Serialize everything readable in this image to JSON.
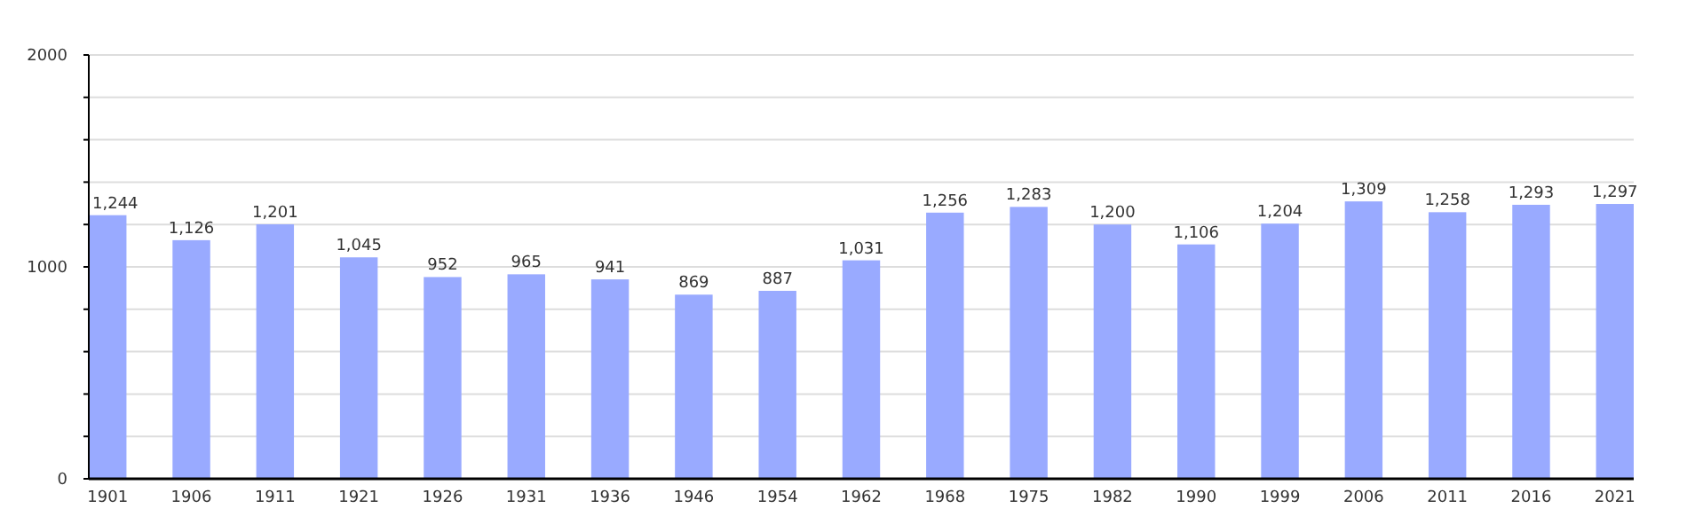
{
  "chart_data": {
    "type": "bar",
    "categories": [
      "1901",
      "1906",
      "1911",
      "1921",
      "1926",
      "1931",
      "1936",
      "1946",
      "1954",
      "1962",
      "1968",
      "1975",
      "1982",
      "1990",
      "1999",
      "2006",
      "2011",
      "2016",
      "2021"
    ],
    "values": [
      1244,
      1126,
      1201,
      1045,
      952,
      965,
      941,
      869,
      887,
      1031,
      1256,
      1283,
      1200,
      1106,
      1204,
      1309,
      1258,
      1293,
      1297
    ],
    "value_labels": [
      "1,244",
      "1,126",
      "1,201",
      "1,045",
      "952",
      "965",
      "941",
      "869",
      "887",
      "1,031",
      "1,256",
      "1,283",
      "1,200",
      "1,106",
      "1,204",
      "1,309",
      "1,258",
      "1,293",
      "1,297"
    ],
    "color": "#99aaff",
    "ylim": [
      0,
      2000
    ],
    "yticks": [
      0,
      {
        "value": 200,
        "label": null
      },
      {
        "value": 400,
        "label": null
      },
      {
        "value": 600,
        "label": null
      },
      {
        "value": 800,
        "label": null
      },
      1000,
      {
        "value": 1200,
        "label": null
      },
      {
        "value": 1400,
        "label": null
      },
      {
        "value": 1600,
        "label": null
      },
      {
        "value": 1800,
        "label": null
      },
      2000
    ],
    "grid": "y"
  }
}
